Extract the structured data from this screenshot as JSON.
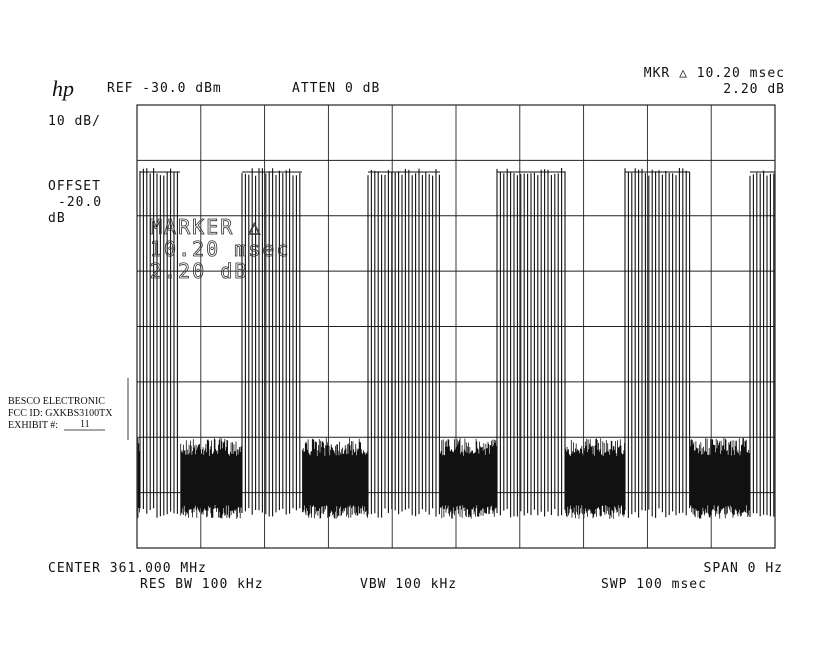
{
  "header": {
    "logo": "hp",
    "ref": "REF -30.0 dBm",
    "atten": "ATTEN 0 dB",
    "marker": "MKR △ 10.20 msec",
    "marker_value": "2.20 dB"
  },
  "left": {
    "scale": "10 dB/",
    "offset": "OFFSET",
    "offset_value": "-20.0",
    "offset_unit": "dB"
  },
  "marker_box": [
    "MARKER △",
    "10.20 msec",
    "2.20 dB"
  ],
  "stamp": {
    "company": "BESCO ELECTRONIC",
    "fcc_id": "FCC ID:  GXKBS3100TX",
    "exhibit": "EXHIBIT #:",
    "exhibit_number": "11"
  },
  "footer": {
    "center": "CENTER 361.000 MHz",
    "span": "SPAN 0 Hz",
    "res_bw": "RES BW 100 kHz",
    "vbw": "VBW 100 kHz",
    "swp": "SWP 100 msec"
  }
}
